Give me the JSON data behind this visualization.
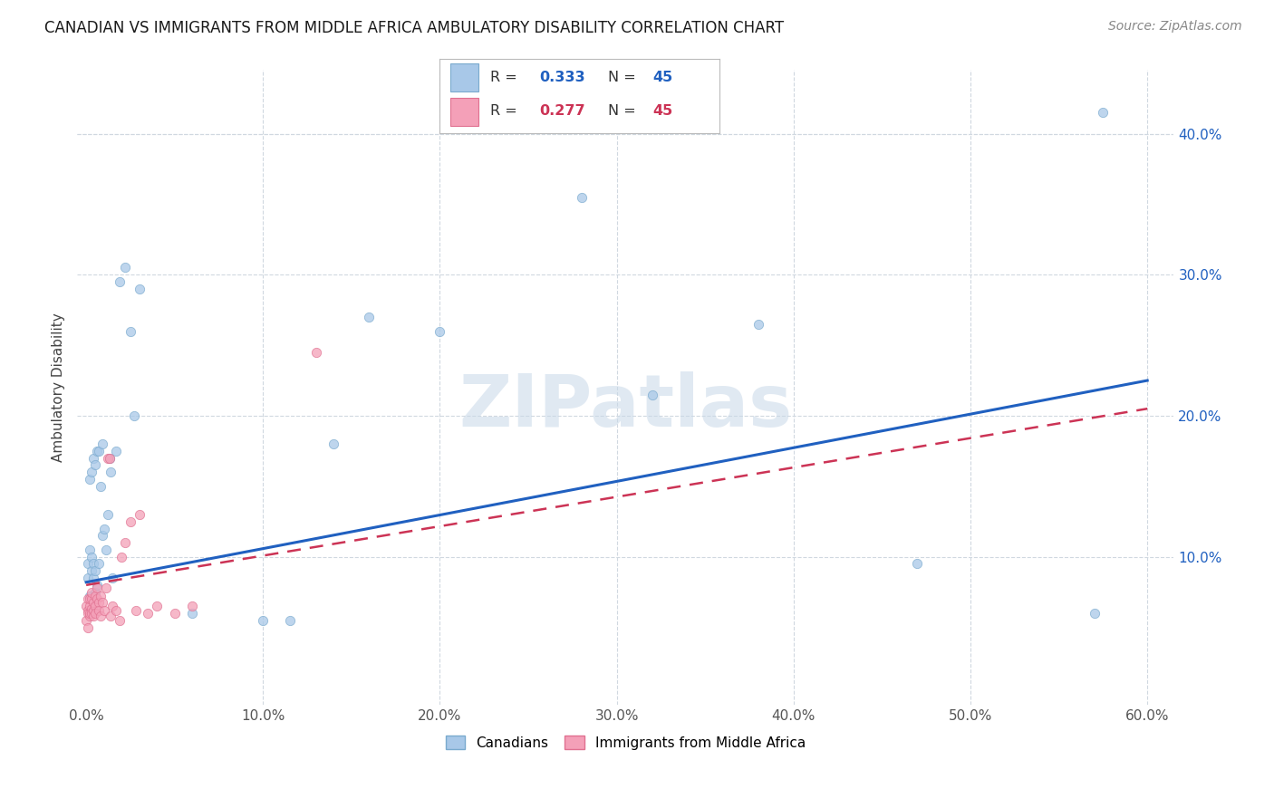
{
  "title": "CANADIAN VS IMMIGRANTS FROM MIDDLE AFRICA AMBULATORY DISABILITY CORRELATION CHART",
  "source": "Source: ZipAtlas.com",
  "ylabel": "Ambulatory Disability",
  "canadian_color": "#a8c8e8",
  "immigrant_color": "#f4a0b8",
  "canadian_edge": "#7aaace",
  "immigrant_edge": "#e07090",
  "trendline_canadian_color": "#2060c0",
  "trendline_immigrant_color": "#cc3355",
  "watermark_color": "#c8d8e8",
  "r_color_blue": "#2060c0",
  "r_color_pink": "#cc3355",
  "canadian_x": [
    0.001,
    0.001,
    0.002,
    0.002,
    0.002,
    0.003,
    0.003,
    0.003,
    0.004,
    0.004,
    0.004,
    0.005,
    0.005,
    0.005,
    0.006,
    0.006,
    0.007,
    0.007,
    0.008,
    0.009,
    0.009,
    0.01,
    0.011,
    0.012,
    0.013,
    0.014,
    0.015,
    0.017,
    0.019,
    0.022,
    0.025,
    0.027,
    0.03,
    0.06,
    0.1,
    0.115,
    0.14,
    0.16,
    0.2,
    0.28,
    0.32,
    0.38,
    0.47,
    0.57,
    0.575
  ],
  "canadian_y": [
    0.095,
    0.085,
    0.072,
    0.105,
    0.155,
    0.09,
    0.1,
    0.16,
    0.085,
    0.095,
    0.17,
    0.075,
    0.09,
    0.165,
    0.08,
    0.175,
    0.095,
    0.175,
    0.15,
    0.115,
    0.18,
    0.12,
    0.105,
    0.13,
    0.17,
    0.16,
    0.085,
    0.175,
    0.295,
    0.305,
    0.26,
    0.2,
    0.29,
    0.06,
    0.055,
    0.055,
    0.18,
    0.27,
    0.26,
    0.355,
    0.215,
    0.265,
    0.095,
    0.06,
    0.415
  ],
  "immigrant_x": [
    0.0,
    0.0,
    0.001,
    0.001,
    0.001,
    0.001,
    0.002,
    0.002,
    0.002,
    0.002,
    0.003,
    0.003,
    0.003,
    0.003,
    0.004,
    0.004,
    0.004,
    0.005,
    0.005,
    0.005,
    0.006,
    0.006,
    0.007,
    0.007,
    0.008,
    0.008,
    0.009,
    0.01,
    0.011,
    0.012,
    0.013,
    0.014,
    0.015,
    0.017,
    0.019,
    0.02,
    0.022,
    0.025,
    0.028,
    0.03,
    0.035,
    0.04,
    0.05,
    0.06,
    0.13
  ],
  "immigrant_y": [
    0.065,
    0.055,
    0.05,
    0.062,
    0.07,
    0.06,
    0.058,
    0.065,
    0.07,
    0.06,
    0.063,
    0.07,
    0.075,
    0.06,
    0.062,
    0.068,
    0.058,
    0.065,
    0.072,
    0.06,
    0.07,
    0.078,
    0.068,
    0.062,
    0.058,
    0.072,
    0.068,
    0.062,
    0.078,
    0.17,
    0.17,
    0.058,
    0.065,
    0.062,
    0.055,
    0.1,
    0.11,
    0.125,
    0.062,
    0.13,
    0.06,
    0.065,
    0.06,
    0.065,
    0.245
  ],
  "trendline_can_x0": 0.0,
  "trendline_can_y0": 0.082,
  "trendline_can_x1": 0.6,
  "trendline_can_y1": 0.225,
  "trendline_imm_x0": 0.0,
  "trendline_imm_y0": 0.08,
  "trendline_imm_x1": 0.6,
  "trendline_imm_y1": 0.205,
  "xlim": [
    -0.005,
    0.615
  ],
  "ylim": [
    -0.005,
    0.445
  ],
  "xticks": [
    0.0,
    0.1,
    0.2,
    0.3,
    0.4,
    0.5,
    0.6
  ],
  "yticks": [
    0.0,
    0.1,
    0.2,
    0.3,
    0.4
  ],
  "xticklabels": [
    "0.0%",
    "10.0%",
    "20.0%",
    "30.0%",
    "40.0%",
    "50.0%",
    "60.0%"
  ],
  "yticklabels_right": [
    "",
    "10.0%",
    "20.0%",
    "30.0%",
    "40.0%"
  ],
  "grid_color": "#d0d8e0",
  "title_fontsize": 12,
  "source_fontsize": 10,
  "tick_fontsize": 11,
  "legend_bottom": [
    "Canadians",
    "Immigrants from Middle Africa"
  ]
}
